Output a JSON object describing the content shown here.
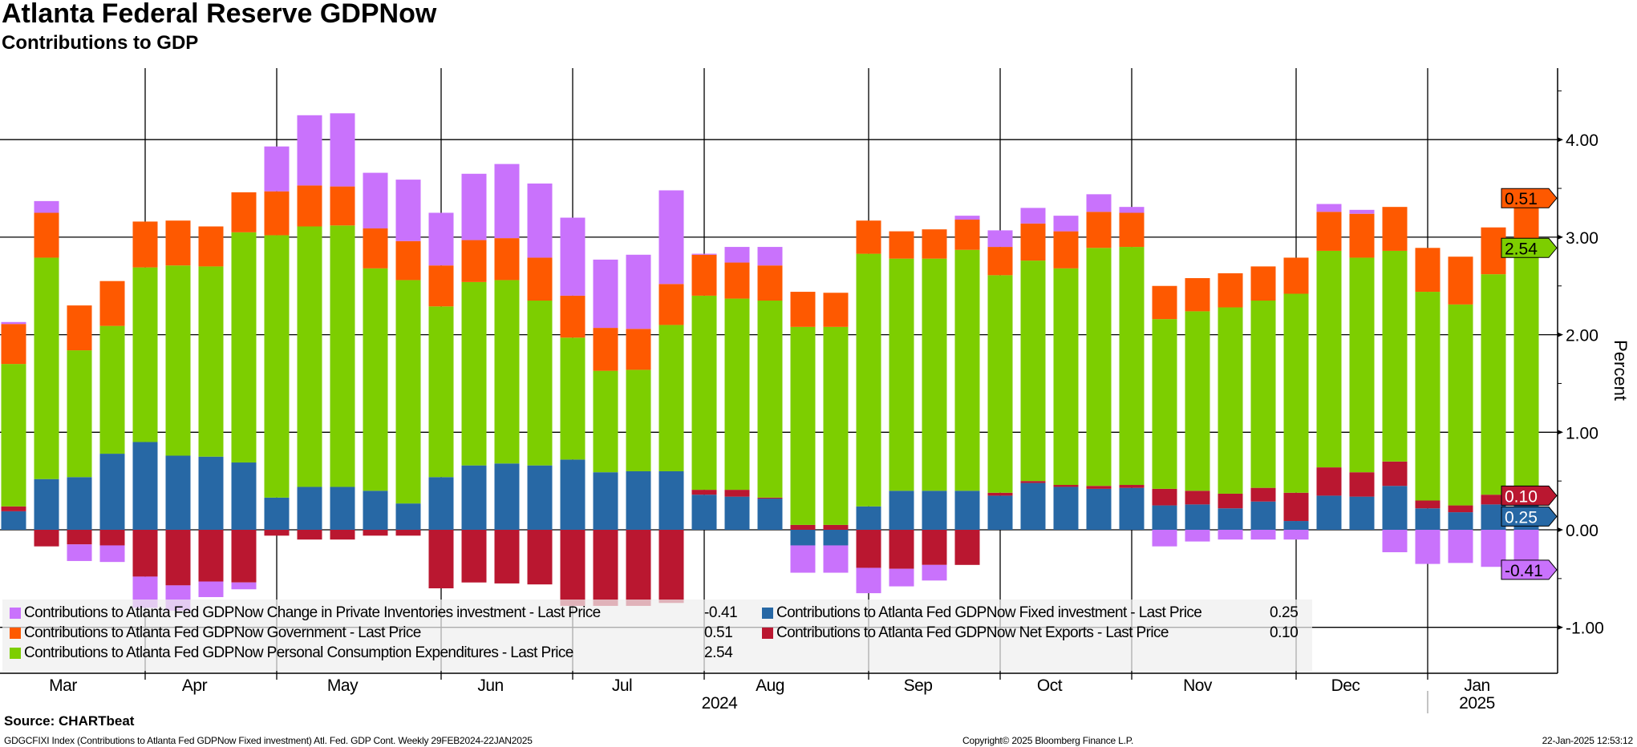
{
  "title": "Atlanta Federal Reserve GDPNow",
  "subtitle": "Contributions to GDP",
  "footer": {
    "source": "Source: CHARTbeat",
    "description": "GDGCFIXI Index (Contributions to Atlanta Fed GDPNow Fixed investment) Atl. Fed. GDP Cont.  Weekly 29FEB2024-22JAN2025",
    "copyright": "Copyright© 2025 Bloomberg Finance L.P.",
    "timestamp": "22-Jan-2025 12:53:12"
  },
  "legend": [
    {
      "key": "inventories",
      "label": "Contributions to Atlanta Fed GDPNow Change in Private Inventories investment - Last Price",
      "value": "-0.41"
    },
    {
      "key": "gov",
      "label": "Contributions to Atlanta Fed GDPNow Government - Last Price",
      "value": "0.51"
    },
    {
      "key": "pce",
      "label": "Contributions to Atlanta Fed GDPNow Personal Consumption Expenditures - Last Price",
      "value": "2.54"
    },
    {
      "key": "fixed",
      "label": "Contributions to Atlanta Fed GDPNow Fixed investment - Last Price",
      "value": "0.25"
    },
    {
      "key": "net_exports",
      "label": "Contributions to Atlanta Fed GDPNow Net Exports - Last Price",
      "value": "0.10"
    }
  ],
  "chart_data": {
    "type": "bar",
    "stacked": true,
    "title": "Atlanta Federal Reserve GDPNow",
    "subtitle": "Contributions to GDP",
    "xlabel": "",
    "ylabel": "Percent",
    "ylim": [
      -1.47,
      4.73
    ],
    "yticks": [
      "4.00",
      "3.00",
      "2.00",
      "1.00",
      "0.00",
      "-1.00"
    ],
    "ytick_values": [
      4,
      3,
      2,
      1,
      0,
      -1
    ],
    "grid": true,
    "legend_position": "bottom-left",
    "frequency": "Weekly",
    "n_bars": 47,
    "months": [
      {
        "label": "Mar",
        "start": 0,
        "end": 4
      },
      {
        "label": "Apr",
        "start": 4,
        "end": 8
      },
      {
        "label": "May",
        "start": 8,
        "end": 13
      },
      {
        "label": "Jun",
        "start": 13,
        "end": 17
      },
      {
        "label": "Jul",
        "start": 17,
        "end": 21
      },
      {
        "label": "Aug",
        "start": 21,
        "end": 26
      },
      {
        "label": "Sep",
        "start": 26,
        "end": 30
      },
      {
        "label": "Oct",
        "start": 30,
        "end": 34
      },
      {
        "label": "Nov",
        "start": 34,
        "end": 39
      },
      {
        "label": "Dec",
        "start": 39,
        "end": 43
      },
      {
        "label": "Jan",
        "start": 43,
        "end": 47
      }
    ],
    "years": [
      {
        "label": "2024",
        "start": 0,
        "end": 43
      },
      {
        "label": "2025",
        "start": 43,
        "end": 47
      }
    ],
    "series": [
      {
        "key": "fixed",
        "name": "Fixed investment",
        "color": "#2768a5",
        "text_color": "#ffffff",
        "values": [
          0.19,
          0.52,
          0.54,
          0.78,
          0.9,
          0.76,
          0.75,
          0.69,
          0.33,
          0.44,
          0.44,
          0.4,
          0.27,
          0.54,
          0.66,
          0.68,
          0.66,
          0.72,
          0.59,
          0.6,
          0.6,
          0.36,
          0.34,
          0.32,
          -0.16,
          -0.16,
          0.24,
          0.4,
          0.4,
          0.4,
          0.35,
          0.48,
          0.44,
          0.42,
          0.43,
          0.25,
          0.26,
          0.22,
          0.29,
          0.09,
          0.35,
          0.34,
          0.45,
          0.22,
          0.18,
          0.26,
          0.25
        ]
      },
      {
        "key": "net_exports",
        "name": "Net Exports",
        "color": "#ba1730",
        "text_color": "#ffffff",
        "values": [
          0.05,
          -0.17,
          -0.15,
          -0.16,
          -0.48,
          -0.57,
          -0.53,
          -0.54,
          -0.06,
          -0.1,
          -0.1,
          -0.06,
          -0.06,
          -0.6,
          -0.54,
          -0.55,
          -0.56,
          -0.78,
          -0.78,
          -0.78,
          -0.75,
          0.05,
          0.07,
          0.01,
          0.05,
          0.05,
          -0.39,
          -0.4,
          -0.36,
          -0.36,
          0.03,
          0.02,
          0.02,
          0.03,
          0.03,
          0.17,
          0.14,
          0.15,
          0.14,
          0.29,
          0.29,
          0.25,
          0.25,
          0.08,
          0.07,
          0.1,
          0.1
        ]
      },
      {
        "key": "pce",
        "name": "Personal Consumption Expenditures",
        "color": "#7dce00",
        "text_color": "#000000",
        "values": [
          1.46,
          2.27,
          1.3,
          1.31,
          1.79,
          1.95,
          1.95,
          2.36,
          2.69,
          2.67,
          2.68,
          2.28,
          2.29,
          1.75,
          1.88,
          1.88,
          1.69,
          1.25,
          1.04,
          1.04,
          1.5,
          1.99,
          1.96,
          2.02,
          2.03,
          2.03,
          2.59,
          2.38,
          2.38,
          2.47,
          2.23,
          2.26,
          2.22,
          2.44,
          2.44,
          1.74,
          1.84,
          1.91,
          1.92,
          2.04,
          2.22,
          2.2,
          2.16,
          2.14,
          2.06,
          2.26,
          2.54
        ]
      },
      {
        "key": "gov",
        "name": "Government",
        "color": "#fe5900",
        "text_color": "#000000",
        "values": [
          0.41,
          0.46,
          0.46,
          0.46,
          0.47,
          0.46,
          0.41,
          0.41,
          0.45,
          0.42,
          0.4,
          0.41,
          0.4,
          0.42,
          0.43,
          0.43,
          0.44,
          0.43,
          0.44,
          0.42,
          0.42,
          0.42,
          0.37,
          0.36,
          0.36,
          0.35,
          0.34,
          0.28,
          0.3,
          0.31,
          0.29,
          0.38,
          0.38,
          0.37,
          0.35,
          0.34,
          0.34,
          0.35,
          0.35,
          0.37,
          0.4,
          0.45,
          0.45,
          0.45,
          0.49,
          0.48,
          0.51
        ]
      },
      {
        "key": "inventories",
        "name": "Change in Private Inventories investment",
        "color": "#c972fc",
        "text_color": "#000000",
        "values": [
          0.02,
          0.12,
          -0.17,
          -0.17,
          -0.32,
          -0.26,
          -0.16,
          -0.07,
          0.46,
          0.72,
          0.75,
          0.57,
          0.63,
          0.54,
          0.68,
          0.76,
          0.76,
          0.8,
          0.7,
          0.76,
          0.96,
          0.01,
          0.16,
          0.19,
          -0.28,
          -0.28,
          -0.26,
          -0.18,
          -0.16,
          0.04,
          0.17,
          0.16,
          0.16,
          0.18,
          0.06,
          -0.17,
          -0.12,
          -0.1,
          -0.1,
          -0.1,
          0.08,
          0.04,
          -0.23,
          -0.35,
          -0.34,
          -0.38,
          -0.41
        ]
      }
    ],
    "last_values": {
      "gov": "0.51",
      "pce": "2.54",
      "net_exports": "0.10",
      "fixed": "0.25",
      "inventories": "-0.41"
    }
  }
}
